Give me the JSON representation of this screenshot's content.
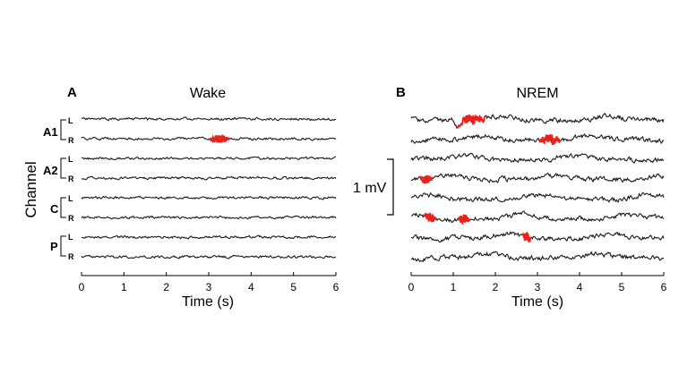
{
  "figure": {
    "ylabel": "Channel",
    "scale_bar_label": "1 mV"
  },
  "chart_data": [
    {
      "type": "line",
      "panel_letter": "A",
      "title": "Wake",
      "xlabel": "Time (s)",
      "xlim": [
        0,
        6
      ],
      "x_ticks": [
        "0",
        "1",
        "2",
        "3",
        "4",
        "5",
        "6"
      ],
      "channel_groups": [
        "A1",
        "A2",
        "C",
        "P"
      ],
      "sides": [
        "L",
        "R"
      ],
      "highlight_color": "#e8231f",
      "trace_color": "#1a1a1a",
      "highlights": [
        {
          "trace": 1,
          "start": 3.0,
          "end": 3.5
        }
      ]
    },
    {
      "type": "line",
      "panel_letter": "B",
      "title": "NREM",
      "xlabel": "Time (s)",
      "xlim": [
        0,
        6
      ],
      "x_ticks": [
        "0",
        "1",
        "2",
        "3",
        "4",
        "5",
        "6"
      ],
      "highlight_color": "#e8231f",
      "trace_color": "#1a1a1a",
      "highlights": [
        {
          "trace": 0,
          "start": 1.1,
          "end": 1.75
        },
        {
          "trace": 1,
          "start": 3.05,
          "end": 3.55
        },
        {
          "trace": 3,
          "start": 0.2,
          "end": 0.5
        },
        {
          "trace": 5,
          "start": 0.3,
          "end": 0.6
        },
        {
          "trace": 5,
          "start": 1.1,
          "end": 1.4
        },
        {
          "trace": 6,
          "start": 2.65,
          "end": 2.85
        }
      ]
    }
  ]
}
